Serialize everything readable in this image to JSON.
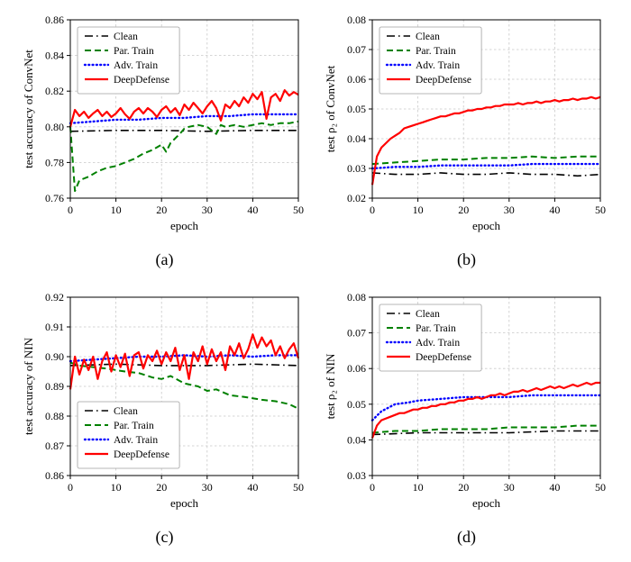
{
  "page": {
    "background": "#ffffff"
  },
  "chart_data": [
    {
      "id": "a",
      "caption": "(a)",
      "type": "line",
      "title": "",
      "xlabel": "epoch",
      "ylabel": "test accuracy of ConvNet",
      "xlim": [
        0,
        50
      ],
      "ylim": [
        0.76,
        0.86
      ],
      "xticks": [
        0,
        10,
        20,
        30,
        40,
        50
      ],
      "yticks": [
        0.76,
        0.78,
        0.8,
        0.82,
        0.84,
        0.86
      ],
      "ydecimals": 2,
      "grid": true,
      "legend_pos": "upper-left",
      "series": [
        {
          "name": "Clean",
          "color": "#000000",
          "style": "dashdot",
          "x": [
            0,
            10,
            20,
            30,
            40,
            50
          ],
          "y": [
            0.7975,
            0.798,
            0.798,
            0.7975,
            0.798,
            0.798
          ]
        },
        {
          "name": "Par. Train",
          "color": "#008000",
          "style": "dashed",
          "x": [
            0,
            1,
            2,
            4,
            6,
            8,
            10,
            12,
            14,
            16,
            18,
            20,
            21,
            22,
            24,
            25,
            26,
            28,
            30,
            32,
            33,
            34,
            36,
            38,
            40,
            42,
            44,
            46,
            48,
            50
          ],
          "y": [
            0.8,
            0.764,
            0.77,
            0.772,
            0.775,
            0.777,
            0.778,
            0.78,
            0.782,
            0.785,
            0.787,
            0.79,
            0.786,
            0.791,
            0.796,
            0.799,
            0.8,
            0.801,
            0.8,
            0.796,
            0.801,
            0.8,
            0.801,
            0.8,
            0.801,
            0.802,
            0.801,
            0.802,
            0.802,
            0.803
          ]
        },
        {
          "name": "Adv. Train",
          "color": "#0000ff",
          "style": "dotted",
          "x": [
            0,
            5,
            10,
            15,
            20,
            25,
            30,
            35,
            40,
            45,
            50
          ],
          "y": [
            0.802,
            0.803,
            0.804,
            0.804,
            0.805,
            0.805,
            0.806,
            0.806,
            0.807,
            0.807,
            0.807
          ]
        },
        {
          "name": "DeepDefense",
          "color": "#ff0000",
          "style": "solid",
          "x": [
            0,
            1,
            2,
            3,
            4,
            5,
            6,
            7,
            8,
            9,
            10,
            11,
            12,
            13,
            14,
            15,
            16,
            17,
            18,
            19,
            20,
            21,
            22,
            23,
            24,
            25,
            26,
            27,
            28,
            29,
            30,
            31,
            32,
            33,
            34,
            35,
            36,
            37,
            38,
            39,
            40,
            41,
            42,
            43,
            44,
            45,
            46,
            47,
            48,
            49,
            50
          ],
          "y": [
            0.8,
            0.8095,
            0.806,
            0.8085,
            0.805,
            0.8075,
            0.8095,
            0.806,
            0.8085,
            0.8055,
            0.8075,
            0.8105,
            0.807,
            0.8045,
            0.8085,
            0.8105,
            0.8075,
            0.8105,
            0.8085,
            0.8055,
            0.8095,
            0.8115,
            0.808,
            0.8105,
            0.8065,
            0.8125,
            0.8095,
            0.8135,
            0.8105,
            0.8075,
            0.8115,
            0.8145,
            0.8105,
            0.8035,
            0.8125,
            0.8105,
            0.8145,
            0.8115,
            0.8165,
            0.8135,
            0.8185,
            0.8155,
            0.8195,
            0.8045,
            0.8165,
            0.8185,
            0.8145,
            0.8205,
            0.8175,
            0.8195,
            0.818
          ]
        }
      ]
    },
    {
      "id": "b",
      "caption": "(b)",
      "type": "line",
      "title": "",
      "xlabel": "epoch",
      "ylabel": "test ρ₂ of ConvNet",
      "xlim": [
        0,
        50
      ],
      "ylim": [
        0.02,
        0.08
      ],
      "xticks": [
        0,
        10,
        20,
        30,
        40,
        50
      ],
      "yticks": [
        0.02,
        0.03,
        0.04,
        0.05,
        0.06,
        0.07,
        0.08
      ],
      "ydecimals": 2,
      "grid": true,
      "legend_pos": "upper-left",
      "series": [
        {
          "name": "Clean",
          "color": "#000000",
          "style": "dashdot",
          "x": [
            0,
            5,
            10,
            15,
            20,
            25,
            30,
            35,
            40,
            45,
            50
          ],
          "y": [
            0.0285,
            0.028,
            0.028,
            0.0285,
            0.028,
            0.028,
            0.0285,
            0.028,
            0.028,
            0.0275,
            0.028
          ]
        },
        {
          "name": "Par. Train",
          "color": "#008000",
          "style": "dashed",
          "x": [
            0,
            5,
            10,
            15,
            20,
            25,
            30,
            35,
            40,
            45,
            50
          ],
          "y": [
            0.0315,
            0.032,
            0.0325,
            0.033,
            0.033,
            0.0335,
            0.0335,
            0.034,
            0.0335,
            0.034,
            0.034
          ]
        },
        {
          "name": "Adv. Train",
          "color": "#0000ff",
          "style": "dotted",
          "x": [
            0,
            5,
            10,
            15,
            20,
            25,
            30,
            35,
            40,
            45,
            50
          ],
          "y": [
            0.03,
            0.0305,
            0.0305,
            0.031,
            0.031,
            0.031,
            0.031,
            0.0315,
            0.0315,
            0.0315,
            0.0315
          ]
        },
        {
          "name": "DeepDefense",
          "color": "#ff0000",
          "style": "solid",
          "x": [
            0,
            1,
            2,
            3,
            4,
            5,
            6,
            7,
            8,
            9,
            10,
            11,
            12,
            13,
            14,
            15,
            16,
            17,
            18,
            19,
            20,
            21,
            22,
            23,
            24,
            25,
            26,
            27,
            28,
            29,
            30,
            31,
            32,
            33,
            34,
            35,
            36,
            37,
            38,
            39,
            40,
            41,
            42,
            43,
            44,
            45,
            46,
            47,
            48,
            49,
            50
          ],
          "y": [
            0.0245,
            0.034,
            0.037,
            0.0385,
            0.04,
            0.041,
            0.042,
            0.0435,
            0.044,
            0.0445,
            0.045,
            0.0455,
            0.046,
            0.0465,
            0.047,
            0.0475,
            0.0475,
            0.048,
            0.0485,
            0.0485,
            0.049,
            0.0495,
            0.0495,
            0.05,
            0.05,
            0.0505,
            0.0505,
            0.051,
            0.051,
            0.0515,
            0.0515,
            0.0515,
            0.052,
            0.0515,
            0.052,
            0.052,
            0.0525,
            0.052,
            0.0525,
            0.0525,
            0.053,
            0.0525,
            0.053,
            0.053,
            0.0535,
            0.053,
            0.0535,
            0.0535,
            0.054,
            0.0535,
            0.054
          ]
        }
      ]
    },
    {
      "id": "c",
      "caption": "(c)",
      "type": "line",
      "title": "",
      "xlabel": "epoch",
      "ylabel": "test accuracy of NIN",
      "xlim": [
        0,
        50
      ],
      "ylim": [
        0.86,
        0.92
      ],
      "xticks": [
        0,
        10,
        20,
        30,
        40,
        50
      ],
      "yticks": [
        0.86,
        0.87,
        0.88,
        0.89,
        0.9,
        0.91,
        0.92
      ],
      "ydecimals": 2,
      "grid": true,
      "legend_pos": "lower-left",
      "series": [
        {
          "name": "Clean",
          "color": "#000000",
          "style": "dashdot",
          "x": [
            0,
            10,
            20,
            30,
            40,
            50
          ],
          "y": [
            0.897,
            0.8975,
            0.897,
            0.897,
            0.8975,
            0.897
          ]
        },
        {
          "name": "Par. Train",
          "color": "#008000",
          "style": "dashed",
          "x": [
            0,
            2,
            5,
            8,
            10,
            12,
            15,
            18,
            20,
            22,
            25,
            28,
            30,
            32,
            35,
            38,
            40,
            42,
            45,
            48,
            50
          ],
          "y": [
            0.898,
            0.897,
            0.8965,
            0.896,
            0.8955,
            0.895,
            0.8945,
            0.893,
            0.8925,
            0.8935,
            0.891,
            0.89,
            0.8885,
            0.889,
            0.887,
            0.8865,
            0.886,
            0.8855,
            0.885,
            0.884,
            0.8825
          ]
        },
        {
          "name": "Adv. Train",
          "color": "#0000ff",
          "style": "dotted",
          "x": [
            0,
            5,
            10,
            15,
            20,
            25,
            30,
            35,
            40,
            45,
            50
          ],
          "y": [
            0.8985,
            0.899,
            0.8995,
            0.9,
            0.9,
            0.9005,
            0.9,
            0.9005,
            0.9,
            0.9005,
            0.9005
          ]
        },
        {
          "name": "DeepDefense",
          "color": "#ff0000",
          "style": "solid",
          "x": [
            0,
            1,
            2,
            3,
            4,
            5,
            6,
            7,
            8,
            9,
            10,
            11,
            12,
            13,
            14,
            15,
            16,
            17,
            18,
            19,
            20,
            21,
            22,
            23,
            24,
            25,
            26,
            27,
            28,
            29,
            30,
            31,
            32,
            33,
            34,
            35,
            36,
            37,
            38,
            39,
            40,
            41,
            42,
            43,
            44,
            45,
            46,
            47,
            48,
            49,
            50
          ],
          "y": [
            0.889,
            0.9,
            0.894,
            0.899,
            0.8955,
            0.9,
            0.8925,
            0.8985,
            0.9015,
            0.895,
            0.9005,
            0.8965,
            0.901,
            0.8935,
            0.9005,
            0.9015,
            0.896,
            0.9005,
            0.8985,
            0.902,
            0.8975,
            0.9015,
            0.8985,
            0.903,
            0.8955,
            0.9005,
            0.8925,
            0.9015,
            0.8985,
            0.9035,
            0.8975,
            0.9025,
            0.8985,
            0.9015,
            0.8955,
            0.9035,
            0.9005,
            0.9045,
            0.8995,
            0.9025,
            0.9075,
            0.903,
            0.9065,
            0.9035,
            0.9055,
            0.9005,
            0.9035,
            0.8995,
            0.9025,
            0.9045,
            0.8995
          ]
        }
      ]
    },
    {
      "id": "d",
      "caption": "(d)",
      "type": "line",
      "title": "",
      "xlabel": "epoch",
      "ylabel": "test ρ₂ of NIN",
      "xlim": [
        0,
        50
      ],
      "ylim": [
        0.03,
        0.08
      ],
      "xticks": [
        0,
        10,
        20,
        30,
        40,
        50
      ],
      "yticks": [
        0.03,
        0.04,
        0.05,
        0.06,
        0.07,
        0.08
      ],
      "ydecimals": 2,
      "grid": true,
      "legend_pos": "upper-left",
      "series": [
        {
          "name": "Clean",
          "color": "#000000",
          "style": "dashdot",
          "x": [
            0,
            10,
            20,
            30,
            40,
            50
          ],
          "y": [
            0.0415,
            0.042,
            0.042,
            0.042,
            0.0425,
            0.0425
          ]
        },
        {
          "name": "Par. Train",
          "color": "#008000",
          "style": "dashed",
          "x": [
            0,
            5,
            10,
            15,
            20,
            25,
            30,
            35,
            40,
            45,
            50
          ],
          "y": [
            0.042,
            0.0425,
            0.0425,
            0.043,
            0.043,
            0.043,
            0.0435,
            0.0435,
            0.0435,
            0.044,
            0.044
          ]
        },
        {
          "name": "Adv. Train",
          "color": "#0000ff",
          "style": "dotted",
          "x": [
            0,
            2,
            5,
            8,
            10,
            15,
            20,
            25,
            30,
            35,
            40,
            45,
            50
          ],
          "y": [
            0.0455,
            0.048,
            0.05,
            0.0505,
            0.051,
            0.0515,
            0.052,
            0.052,
            0.052,
            0.0525,
            0.0525,
            0.0525,
            0.0525
          ]
        },
        {
          "name": "DeepDefense",
          "color": "#ff0000",
          "style": "solid",
          "x": [
            0,
            1,
            2,
            3,
            4,
            5,
            6,
            7,
            8,
            9,
            10,
            11,
            12,
            13,
            14,
            15,
            16,
            17,
            18,
            19,
            20,
            21,
            22,
            23,
            24,
            25,
            26,
            27,
            28,
            29,
            30,
            31,
            32,
            33,
            34,
            35,
            36,
            37,
            38,
            39,
            40,
            41,
            42,
            43,
            44,
            45,
            46,
            47,
            48,
            49,
            50
          ],
          "y": [
            0.0405,
            0.044,
            0.0455,
            0.046,
            0.0465,
            0.047,
            0.0475,
            0.0475,
            0.048,
            0.0485,
            0.0485,
            0.049,
            0.049,
            0.0495,
            0.0495,
            0.05,
            0.05,
            0.0505,
            0.0505,
            0.051,
            0.051,
            0.0515,
            0.0515,
            0.052,
            0.0515,
            0.052,
            0.0525,
            0.0525,
            0.053,
            0.0525,
            0.053,
            0.0535,
            0.0535,
            0.054,
            0.0535,
            0.054,
            0.0545,
            0.054,
            0.0545,
            0.055,
            0.0545,
            0.055,
            0.0545,
            0.055,
            0.0555,
            0.055,
            0.0555,
            0.056,
            0.0555,
            0.056,
            0.056
          ]
        }
      ]
    }
  ]
}
